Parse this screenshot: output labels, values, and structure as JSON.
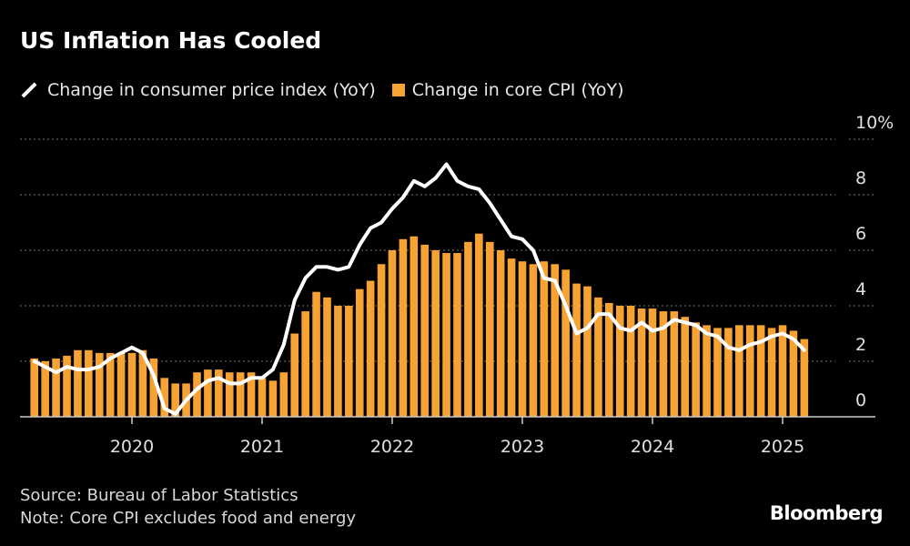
{
  "chart_data": {
    "type": "bar",
    "title": "US Inflation Has Cooled",
    "xlabel": "",
    "ylabel": "",
    "ylim": [
      0,
      10
    ],
    "yticks": [
      "0",
      "2",
      "4",
      "6",
      "8",
      "10%"
    ],
    "ytick_values": [
      0,
      2,
      4,
      6,
      8,
      10
    ],
    "xticks": [
      "2020",
      "2021",
      "2022",
      "2023",
      "2024",
      "2025"
    ],
    "grid": true,
    "legend_placement": "top-left",
    "start_month": "2019-04",
    "series": [
      {
        "name": "Change in consumer price index (YoY)",
        "type": "line",
        "color": "#ffffff",
        "values": [
          2.0,
          1.8,
          1.6,
          1.8,
          1.7,
          1.7,
          1.8,
          2.1,
          2.3,
          2.5,
          2.3,
          1.5,
          0.3,
          0.1,
          0.6,
          1.0,
          1.3,
          1.4,
          1.2,
          1.2,
          1.4,
          1.4,
          1.7,
          2.6,
          4.2,
          5.0,
          5.4,
          5.4,
          5.3,
          5.4,
          6.2,
          6.8,
          7.0,
          7.5,
          7.9,
          8.5,
          8.3,
          8.6,
          9.1,
          8.5,
          8.3,
          8.2,
          7.7,
          7.1,
          6.5,
          6.4,
          6.0,
          5.0,
          4.9,
          4.0,
          3.0,
          3.2,
          3.7,
          3.7,
          3.2,
          3.1,
          3.4,
          3.1,
          3.2,
          3.5,
          3.4,
          3.3,
          3.0,
          2.9,
          2.5,
          2.4,
          2.6,
          2.7,
          2.9,
          3.0,
          2.8,
          2.4
        ]
      },
      {
        "name": "Change in core CPI (YoY)",
        "type": "bar",
        "color": "#f7a334",
        "values": [
          2.1,
          2.0,
          2.1,
          2.2,
          2.4,
          2.4,
          2.3,
          2.3,
          2.3,
          2.3,
          2.4,
          2.1,
          1.4,
          1.2,
          1.2,
          1.6,
          1.7,
          1.7,
          1.6,
          1.6,
          1.6,
          1.4,
          1.3,
          1.6,
          3.0,
          3.8,
          4.5,
          4.3,
          4.0,
          4.0,
          4.6,
          4.9,
          5.5,
          6.0,
          6.4,
          6.5,
          6.2,
          6.0,
          5.9,
          5.9,
          6.3,
          6.6,
          6.3,
          6.0,
          5.7,
          5.6,
          5.5,
          5.6,
          5.5,
          5.3,
          4.8,
          4.7,
          4.3,
          4.1,
          4.0,
          4.0,
          3.9,
          3.9,
          3.8,
          3.8,
          3.6,
          3.4,
          3.3,
          3.2,
          3.2,
          3.3,
          3.3,
          3.3,
          3.2,
          3.3,
          3.1,
          2.8
        ]
      }
    ]
  },
  "footer": {
    "source": "Source: Bureau of Labor Statistics",
    "note": "Note: Core CPI excludes food and energy",
    "brand": "Bloomberg"
  }
}
